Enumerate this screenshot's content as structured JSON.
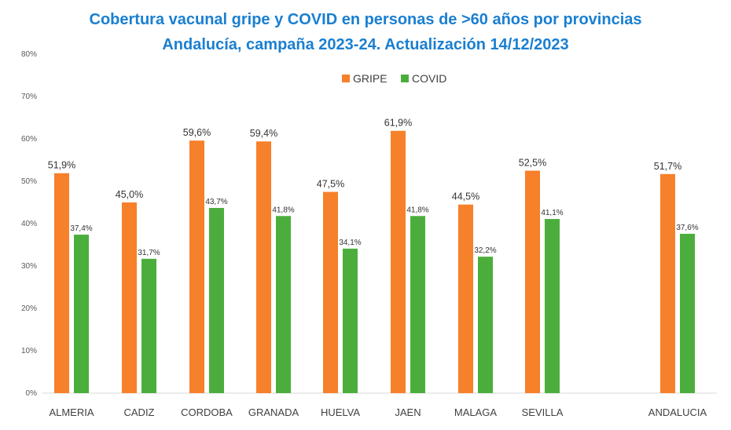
{
  "chart_data": {
    "type": "bar",
    "title": "Cobertura vacunal gripe y COVID en personas de >60 años por provincias",
    "subtitle": "Andalucía, campaña 2023-24. Actualización 14/12/2023",
    "categories": [
      "ALMERIA",
      "CADIZ",
      "CORDOBA",
      "GRANADA",
      "HUELVA",
      "JAEN",
      "MALAGA",
      "SEVILLA",
      "ANDALUCIA"
    ],
    "series": [
      {
        "name": "GRIPE",
        "color": "#f7802b",
        "values": [
          51.9,
          45.0,
          59.6,
          59.4,
          47.5,
          61.9,
          44.5,
          52.5,
          51.7
        ],
        "labels": [
          "51,9%",
          "45,0%",
          "59,6%",
          "59,4%",
          "47,5%",
          "61,9%",
          "44,5%",
          "52,5%",
          "51,7%"
        ]
      },
      {
        "name": "COVID",
        "color": "#4bae3c",
        "values": [
          37.4,
          31.7,
          43.7,
          41.8,
          34.1,
          41.8,
          32.2,
          41.1,
          37.6
        ],
        "labels": [
          "37,4%",
          "31,7%",
          "43,7%",
          "41,8%",
          "34,1%",
          "41,8%",
          "32,2%",
          "41,1%",
          "37,6%"
        ]
      }
    ],
    "ylim": [
      0,
      80
    ],
    "yticks": [
      "0%",
      "10%",
      "20%",
      "30%",
      "40%",
      "50%",
      "60%",
      "70%",
      "80%"
    ],
    "xlabel": "",
    "ylabel": "",
    "grid": false,
    "legend_position": "top-center"
  }
}
